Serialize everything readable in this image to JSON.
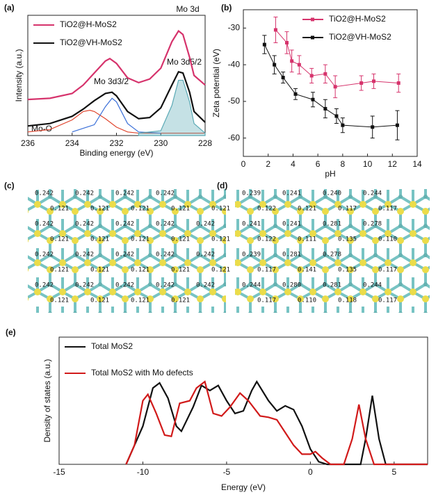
{
  "chart_data": [
    {
      "type": "line",
      "label": "(a)",
      "xlabel": "Binding energy (eV)",
      "ylabel": "Intensity (a.u.)",
      "xlim": [
        236,
        228
      ],
      "xticks": [
        236,
        234,
        232,
        230,
        228
      ],
      "ylim": [
        0,
        10
      ],
      "legend": "upper left",
      "annotations": [
        "Mo 3d",
        "Mo 3d3/2",
        "Mo 3d5/2",
        "Mo-O"
      ],
      "series": [
        {
          "name": "TiO2@H-MoS2",
          "color": "#d6336c",
          "x": [
            236,
            235,
            234,
            233.5,
            233,
            232.5,
            232.3,
            232,
            231.5,
            231,
            230.5,
            230,
            229.5,
            229.2,
            229,
            228.7,
            228.5,
            228
          ],
          "values": [
            3.0,
            3.1,
            3.5,
            4.2,
            5.2,
            6.2,
            6.4,
            6.0,
            4.8,
            4.4,
            4.7,
            5.6,
            7.8,
            8.7,
            8.4,
            6.5,
            5.0,
            4.2
          ]
        },
        {
          "name": "TiO2@VH-MoS2",
          "color": "#111111",
          "x": [
            236,
            235,
            234,
            233.5,
            233,
            232.5,
            232.2,
            232,
            231.5,
            231,
            230.5,
            230,
            229.5,
            229.2,
            229,
            228.7,
            228.5,
            228
          ],
          "values": [
            0.8,
            1.0,
            1.6,
            2.2,
            2.9,
            3.5,
            3.6,
            3.3,
            2.0,
            1.4,
            1.5,
            2.3,
            4.2,
            5.3,
            5.2,
            3.6,
            2.0,
            1.1
          ]
        },
        {
          "color": "#e0442c",
          "x": [
            236,
            235,
            234,
            233.5,
            233.2,
            233,
            232.5,
            232,
            231.5,
            231,
            228
          ],
          "values": [
            0.3,
            0.5,
            1.3,
            2.0,
            2.1,
            2.0,
            1.4,
            0.7,
            0.3,
            0.2,
            0.2
          ]
        },
        {
          "color": "#3a6fd8",
          "x": [
            234,
            233,
            232.5,
            232.2,
            232,
            231.5,
            231,
            230
          ],
          "values": [
            0.3,
            0.9,
            2.4,
            3.1,
            2.8,
            1.0,
            0.3,
            0.2
          ]
        },
        {
          "color": "#5aa9b5",
          "fill": true,
          "x": [
            231,
            230,
            229.5,
            229.2,
            229,
            228.7,
            228.5,
            228
          ],
          "values": [
            0.2,
            0.4,
            2.5,
            4.6,
            4.6,
            2.8,
            1.0,
            0.2
          ]
        }
      ]
    },
    {
      "type": "scatter",
      "label": "(b)",
      "xlabel": "pH",
      "ylabel": "Zeta potential (eV)",
      "xlim": [
        0,
        14
      ],
      "xticks": [
        0,
        2,
        4,
        6,
        8,
        10,
        12,
        14
      ],
      "ylim": [
        -65,
        -25
      ],
      "yticks": [
        -60,
        -50,
        -40,
        -30
      ],
      "legend": "upper right",
      "series": [
        {
          "name": "TiO2@H-MoS2",
          "color": "#d6336c",
          "x": [
            2.6,
            3.5,
            3.9,
            4.5,
            5.5,
            6.6,
            7.4,
            9.5,
            10.5,
            12.5
          ],
          "values": [
            -30.5,
            -34,
            -39,
            -40,
            -43,
            -42.5,
            -46,
            -45,
            -44.5,
            -45
          ],
          "errors": [
            3.5,
            3,
            3,
            2.5,
            2,
            2.5,
            3,
            2,
            2,
            2.5
          ]
        },
        {
          "name": "TiO2@VH-MoS2",
          "color": "#111111",
          "x": [
            1.7,
            2.5,
            3.2,
            4.2,
            5.6,
            6.6,
            7.5,
            8,
            10.4,
            12.4
          ],
          "values": [
            -34.5,
            -40,
            -43.5,
            -48,
            -49.5,
            -52,
            -54,
            -56.5,
            -57,
            -56.5
          ],
          "errors": [
            2.5,
            2.5,
            1.5,
            1.5,
            2,
            2.5,
            2,
            2,
            3,
            4
          ]
        }
      ]
    },
    {
      "type": "line",
      "label": "(e)",
      "xlabel": "Energy (eV)",
      "ylabel": "Density of states (a.u.)",
      "xlim": [
        -15,
        7
      ],
      "xticks": [
        -15,
        -10,
        -5,
        0,
        5
      ],
      "ylim": [
        0,
        10
      ],
      "legend": "upper left",
      "series": [
        {
          "name": "Total MoS2",
          "color": "#111111",
          "x": [
            -11,
            -10,
            -9.4,
            -9,
            -8.5,
            -8,
            -7.7,
            -7,
            -6.5,
            -6,
            -5.5,
            -5,
            -4.5,
            -4,
            -3.5,
            -3.2,
            -2.5,
            -2,
            -1.5,
            -1,
            -0.5,
            0,
            0.5,
            1,
            2,
            3,
            3.3,
            3.7,
            4.1,
            4.5,
            5,
            7
          ],
          "values": [
            0,
            3,
            6,
            6.4,
            5.2,
            3,
            2.6,
            4.5,
            6.2,
            5.8,
            6.2,
            5,
            4,
            4.2,
            5.8,
            6.5,
            5,
            4.2,
            4.6,
            4.3,
            3,
            1.2,
            0.2,
            0,
            0,
            0,
            2,
            5.4,
            2,
            0,
            0,
            0
          ]
        },
        {
          "name": "Total MoS2 with Mo defects",
          "color": "#d11a1a",
          "x": [
            -11,
            -10.5,
            -10,
            -9.7,
            -9.2,
            -8.7,
            -8.3,
            -7.8,
            -7.2,
            -6.8,
            -6.3,
            -5.8,
            -5.3,
            -4.8,
            -4.2,
            -3.7,
            -3,
            -2.5,
            -2,
            -1.5,
            -1,
            -0.5,
            0,
            0.3,
            0.7,
            1.2,
            2,
            2.5,
            2.9,
            3.3,
            3.8,
            7
          ],
          "values": [
            0,
            1.5,
            5,
            5.5,
            4,
            2.3,
            2.2,
            4.8,
            5,
            6,
            6.5,
            4,
            3.8,
            4.5,
            5.6,
            5,
            3.8,
            3.7,
            3.5,
            2.5,
            1.5,
            0.8,
            0.8,
            1,
            0.5,
            0,
            0,
            2,
            4.7,
            2,
            0,
            0
          ]
        }
      ]
    }
  ],
  "structures": [
    {
      "label": "(c)",
      "rows": [
        [
          "0.242",
          "0.242",
          "0.242",
          "0.242"
        ],
        [
          "0.121",
          "0.121",
          "0.121",
          "0.121",
          "0.121"
        ],
        [
          "0.242",
          "0.242",
          "0.242",
          "0.242",
          "0.242"
        ],
        [
          "0.121",
          "0.121",
          "0.121",
          "0.121",
          "0.121"
        ],
        [
          "0.242",
          "0.242",
          "0.242",
          "0.242",
          "0.242"
        ],
        [
          "0.121",
          "0.121",
          "0.121",
          "0.121",
          "0.121"
        ],
        [
          "0.242",
          "0.242",
          "0.242",
          "0.242",
          "0.242"
        ],
        [
          "0.121",
          "0.121",
          "0.121",
          "0.121"
        ]
      ]
    },
    {
      "label": "(d)",
      "rows": [
        [
          "0.239",
          "0.241",
          "0.240",
          "0.244"
        ],
        [
          "0.122",
          "0.121",
          "0.117",
          "0.117"
        ],
        [
          "0.241",
          "0.241",
          "0.281",
          "0.278"
        ],
        [
          "0.122",
          "0.111",
          "0.135",
          "0.110"
        ],
        [
          "0.239",
          "0.281",
          "0.278"
        ],
        [
          "0.117",
          "0.141",
          "0.135",
          "0.117"
        ],
        [
          "0.244",
          "0.280",
          "0.281",
          "0.244"
        ],
        [
          "0.117",
          "0.110",
          "0.118",
          "0.117"
        ]
      ]
    }
  ]
}
